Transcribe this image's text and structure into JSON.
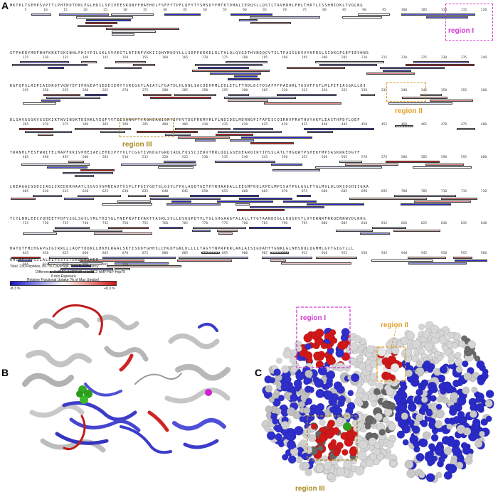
{
  "panels": {
    "a": "A",
    "b": "B",
    "c": "C"
  },
  "colors": {
    "protection": "#2b2bd4",
    "deprotection": "#d42020",
    "neutral": "#f4f4f4",
    "region_I": "#d23bd2",
    "region_II": "#e0a02a",
    "region_III": "#a68a22"
  },
  "sequence_rows": [
    {
      "seq": "MKTPLTSEHPSVPTTLPHTHDTDNLEGLHDILSPIVEESKQNYFHAEHDLFSFFYTPFLQFYTYSMSDYFMTKTDMALIERQSLLQSTLTAVHRHLFHLTHRTLISSHHIDKLTVQLNG",
      "ticks": [
        "5",
        "10",
        "15",
        "20",
        "25",
        "30",
        "35",
        "40",
        "45",
        "50",
        "55",
        "60",
        "65",
        "70",
        "75",
        "80",
        "85",
        "90",
        "95",
        "100",
        "105",
        "110",
        "115",
        "120"
      ]
    },
    {
      "seq": "STPHERYMDFNHFKNKTSKSNHLFHIYPILGKLVVVEGTLRTINFVKKIIQHYMKDYLLLSDFFKEKDLRLTHLQLQVGDTHVNQQCVTILTFASGGKVVYHPRSLSIDKGFGEFIEVHNS",
      "ticks": [
        "125",
        "130",
        "135",
        "140",
        "145",
        "150",
        "155",
        "160",
        "165",
        "170",
        "175",
        "180",
        "185",
        "190",
        "195",
        "200",
        "205",
        "210",
        "215",
        "220",
        "225",
        "230",
        "235",
        "240"
      ]
    },
    {
      "seq": "KGFQPSLRIPIAIDRQTVQWYEFIPHGEATSEDEIERYYSRIGGYLAIAYLFGATDLHLDNLIACDEHPMLIDLETLFTHDLDCYDSAFPFPAEARLTGSVFFGTLMLPITIASGKLLDI",
      "ticks": [
        "245",
        "250",
        "255",
        "260",
        "265",
        "270",
        "275",
        "280",
        "285",
        "290",
        "295",
        "300",
        "305",
        "310",
        "315",
        "320",
        "325",
        "330",
        "335",
        "340",
        "345",
        "350",
        "355",
        "360"
      ]
    },
    {
      "seq": "DLSAVGGGKVGSEKIKTWVINQKTDEHKLVEQPYVTEESQNKPTVRGKEANIGRYIPHVTDGFRKMYRLFLNDIDELMDHNGPIFAFESCQIRHVPRATHVYAKFLEASTHPDYLQEP",
      "ticks": [
        "365",
        "370",
        "375",
        "380",
        "385",
        "390",
        "395",
        "400",
        "405",
        "410",
        "415",
        "420",
        "425",
        "430",
        "435",
        "440",
        "445",
        "450",
        "455",
        "460",
        "465",
        "470",
        "475",
        "480"
      ]
    },
    {
      "seq": "TRRNHLFESFWNITELMAPFKKIVPHEIAELEHDIPYYVLTCGGTIVKDGYGRDIADLFQSSCIERVTHRLQQLGSEDEARQIRYIHSSLATLTHGQWTPSHEKTMPSASKRREDGYF",
      "ticks": [
        "485",
        "490",
        "495",
        "500",
        "505",
        "510",
        "515",
        "520",
        "525",
        "530",
        "535",
        "540",
        "545",
        "550",
        "555",
        "560",
        "565",
        "570",
        "575",
        "580",
        "585",
        "590",
        "595",
        "600"
      ]
    },
    {
      "seq": "LREAGAIGDDIIAQLIREDDRHAAYLIGVSVGMNEAVTVSPLTPGIYGDTGLGIVLFPGLAQQTGETHYRHAADALLEEGMFKQLKPELMPSSAYPGLGSLFYGLMVLQLQRSDSHIIGKA",
      "ticks": [
        "605",
        "610",
        "615",
        "620",
        "625",
        "630",
        "635",
        "640",
        "645",
        "650",
        "655",
        "660",
        "665",
        "670",
        "675",
        "680",
        "685",
        "690",
        "695",
        "700",
        "705",
        "710",
        "715",
        "720"
      ]
    },
    {
      "seq": "YCYLNHLEECVQHEETPDFVSGLSGVLYMLTHIYGLTNEPRVFEVAKTTASRLSVLLDSKQPDTVLTGLSHGAAGFALALLTYGTAANDEGLLKQGHSYLVYERNRFNKQENNWVDLRKG",
      "ticks": [
        "725",
        "730",
        "735",
        "740",
        "745",
        "750",
        "755",
        "760",
        "765",
        "770",
        "775",
        "780",
        "785",
        "790",
        "795",
        "800",
        "805",
        "810",
        "815",
        "820",
        "825",
        "830",
        "835",
        "840"
      ]
    },
    {
      "seq": "BAYQTFMCHGAPGIGIRRLLLAQFYDDKLLHKHLRAALSKTISDDFGHHSLCHGDFGNLDLLLLTAGYTNPRPKRLAKLAISIGDAHTYGNKLGLNHSDQLQGMMLGVTGIGYLLL",
      "ticks": [
        "845",
        "850",
        "855",
        "860",
        "865",
        "870",
        "875",
        "880",
        "885",
        "890",
        "895",
        "900",
        "905",
        "910",
        "915",
        "920",
        "925",
        "930",
        "935",
        "940",
        "945",
        "950",
        "955",
        "960"
      ]
    },
    {
      "seq": "RHIMPTVPSILALELPSSTLTEKELRIHDR",
      "ticks": [
        "965",
        "970",
        "975",
        "980",
        "985",
        "990"
      ]
    }
  ],
  "regions": [
    {
      "label": "region I"
    },
    {
      "label": "region II"
    },
    {
      "label": "region III"
    }
  ],
  "footer": {
    "summary": "Total: 230 Peptides, 89.7% Coverage, 2.94 Redundancy",
    "difference": "Difference: HsIRE2·AMPPNP - HsIRE2·AMPPNP·Hsp70",
    "exposure": "8 min Exposure",
    "uptake": "Relative Fractional Uptake (% of Max Uptake)",
    "legend_min": "-8.3 %",
    "legend_max": "+8.3 %"
  }
}
